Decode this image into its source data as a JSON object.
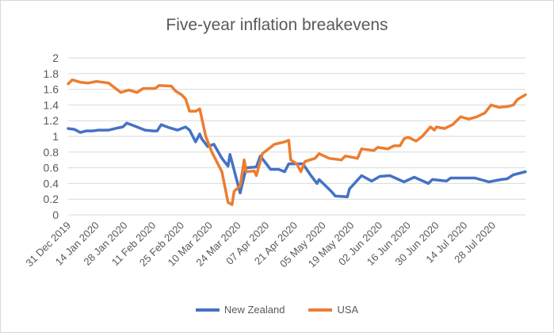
{
  "chart_data": {
    "type": "line",
    "title": "Five-year inflation breakevens",
    "xlabel": "",
    "ylabel": "",
    "xlim": [
      "2019-12-31",
      "2020-08-13"
    ],
    "ylim": [
      0,
      2
    ],
    "y_ticks": [
      "0",
      "0.2",
      "0.4",
      "0.6",
      "0.8",
      "1",
      "1.2",
      "1.4",
      "1.6",
      "1.8",
      "2"
    ],
    "x_ticks": [
      "31 Dec 2019",
      "14 Jan 2020",
      "28 Jan 2020",
      "11 Feb 2020",
      "25 Feb 2020",
      "10 Mar 2020",
      "24 Mar 2020",
      "07 Apr 2020",
      "21 Apr 2020",
      "05 May 2020",
      "19 May 2020",
      "02 Jun 2020",
      "16 Jun 2020",
      "30 Jun 2020",
      "14 Jul 2020",
      "28 Jul 2020"
    ],
    "grid": true,
    "legend_position": "bottom",
    "series": [
      {
        "name": "New Zealand",
        "color": "#4472c4",
        "x": [
          "2019-12-31",
          "2020-01-03",
          "2020-01-06",
          "2020-01-09",
          "2020-01-12",
          "2020-01-15",
          "2020-01-20",
          "2020-01-25",
          "2020-01-27",
          "2020-01-29",
          "2020-02-02",
          "2020-02-07",
          "2020-02-11",
          "2020-02-13",
          "2020-02-15",
          "2020-02-19",
          "2020-02-23",
          "2020-02-27",
          "2020-02-29",
          "2020-03-03",
          "2020-03-05",
          "2020-03-06",
          "2020-03-09",
          "2020-03-12",
          "2020-03-16",
          "2020-03-19",
          "2020-03-20",
          "2020-03-25",
          "2020-03-28",
          "2020-04-02",
          "2020-04-04",
          "2020-04-09",
          "2020-04-13",
          "2020-04-16",
          "2020-04-18",
          "2020-04-25",
          "2020-04-29",
          "2020-05-02",
          "2020-05-03",
          "2020-05-09",
          "2020-05-11",
          "2020-05-17",
          "2020-05-18",
          "2020-05-24",
          "2020-05-29",
          "2020-06-02",
          "2020-06-07",
          "2020-06-14",
          "2020-06-19",
          "2020-06-26",
          "2020-06-28",
          "2020-07-05",
          "2020-07-07",
          "2020-07-19",
          "2020-07-26",
          "2020-08-01",
          "2020-08-04",
          "2020-08-07",
          "2020-08-13"
        ],
        "y": [
          1.1,
          1.09,
          1.05,
          1.07,
          1.07,
          1.08,
          1.08,
          1.11,
          1.12,
          1.17,
          1.13,
          1.08,
          1.07,
          1.07,
          1.15,
          1.11,
          1.08,
          1.12,
          1.08,
          0.93,
          1.03,
          0.97,
          0.87,
          0.9,
          0.72,
          0.62,
          0.77,
          0.28,
          0.6,
          0.61,
          0.75,
          0.58,
          0.58,
          0.55,
          0.65,
          0.65,
          0.5,
          0.4,
          0.45,
          0.3,
          0.24,
          0.23,
          0.33,
          0.5,
          0.43,
          0.49,
          0.5,
          0.42,
          0.48,
          0.4,
          0.45,
          0.43,
          0.47,
          0.47,
          0.42,
          0.45,
          0.46,
          0.51,
          0.55
        ]
      },
      {
        "name": "USA",
        "color": "#ed7d31",
        "x": [
          "2019-12-31",
          "2020-01-02",
          "2020-01-06",
          "2020-01-10",
          "2020-01-14",
          "2020-01-20",
          "2020-01-26",
          "2020-01-30",
          "2020-02-03",
          "2020-02-06",
          "2020-02-12",
          "2020-02-14",
          "2020-02-20",
          "2020-02-22",
          "2020-02-25",
          "2020-02-27",
          "2020-02-29",
          "2020-03-03",
          "2020-03-05",
          "2020-03-08",
          "2020-03-11",
          "2020-03-16",
          "2020-03-19",
          "2020-03-21",
          "2020-03-22",
          "2020-03-25",
          "2020-03-27",
          "2020-03-28",
          "2020-04-01",
          "2020-04-02",
          "2020-04-05",
          "2020-04-09",
          "2020-04-11",
          "2020-04-16",
          "2020-04-18",
          "2020-04-19",
          "2020-04-22",
          "2020-04-24",
          "2020-04-26",
          "2020-05-01",
          "2020-05-03",
          "2020-05-08",
          "2020-05-14",
          "2020-05-16",
          "2020-05-22",
          "2020-05-24",
          "2020-05-30",
          "2020-06-01",
          "2020-06-06",
          "2020-06-09",
          "2020-06-12",
          "2020-06-14",
          "2020-06-16",
          "2020-06-20",
          "2020-06-23",
          "2020-06-27",
          "2020-06-29",
          "2020-06-30",
          "2020-07-04",
          "2020-07-08",
          "2020-07-12",
          "2020-07-16",
          "2020-07-20",
          "2020-07-24",
          "2020-07-27",
          "2020-07-31",
          "2020-08-04",
          "2020-08-07",
          "2020-08-09",
          "2020-08-13"
        ],
        "y": [
          1.67,
          1.72,
          1.69,
          1.68,
          1.7,
          1.68,
          1.56,
          1.59,
          1.56,
          1.61,
          1.61,
          1.65,
          1.64,
          1.58,
          1.53,
          1.48,
          1.32,
          1.32,
          1.35,
          1.0,
          0.8,
          0.55,
          0.16,
          0.13,
          0.3,
          0.37,
          0.7,
          0.55,
          0.56,
          0.5,
          0.78,
          0.86,
          0.9,
          0.93,
          0.95,
          0.7,
          0.65,
          0.55,
          0.68,
          0.72,
          0.78,
          0.72,
          0.7,
          0.75,
          0.72,
          0.84,
          0.82,
          0.86,
          0.84,
          0.88,
          0.88,
          0.97,
          0.99,
          0.94,
          1.0,
          1.12,
          1.08,
          1.12,
          1.1,
          1.15,
          1.25,
          1.22,
          1.25,
          1.3,
          1.4,
          1.37,
          1.38,
          1.4,
          1.47,
          1.53
        ]
      }
    ]
  }
}
